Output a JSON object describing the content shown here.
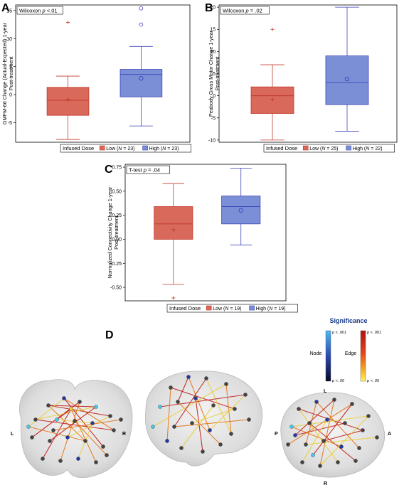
{
  "colors": {
    "low": "#d9695a",
    "low_edge": "#c0392b",
    "high": "#7b8fd6",
    "high_edge": "#3b44b8"
  },
  "chart_data": [
    {
      "panel": "A",
      "type": "box",
      "ylabel": "GMFM-66 Change (Actual-Expected) 1-year Post-treatment",
      "annotation": "Wilcoxon p <.01",
      "ylim": [
        -8.5,
        16
      ],
      "yticks": [
        -5,
        0,
        5,
        10,
        15
      ],
      "legend": {
        "title": "Infused Dose",
        "entries": [
          "Low (N = 23)",
          "High (N = 23)"
        ]
      },
      "series": [
        {
          "name": "Low (N = 23)",
          "q1": -3.7,
          "median": -1.0,
          "q3": 1.3,
          "whisker_low": -8.0,
          "whisker_high": 3.3,
          "mean": -0.9,
          "outliers": [
            12.9
          ]
        },
        {
          "name": "High (N = 23)",
          "q1": -0.4,
          "median": 3.6,
          "q3": 4.5,
          "whisker_low": -5.6,
          "whisker_high": 8.6,
          "mean": 2.9,
          "outliers": [
            12.5,
            15.4
          ]
        }
      ]
    },
    {
      "panel": "B",
      "type": "box",
      "ylabel": "Peabody Gross Motor Change 1-year Post-treatment",
      "annotation": "Wilcoxon p = .02",
      "ylim": [
        -10.5,
        20.5
      ],
      "yticks": [
        -10,
        -5,
        0,
        5,
        10,
        15,
        20
      ],
      "legend": {
        "title": "Infused Dose",
        "entries": [
          "Low (N = 25)",
          "High (N = 22)"
        ]
      },
      "series": [
        {
          "name": "Low (N = 25)",
          "q1": -4.0,
          "median": 0.0,
          "q3": 2.0,
          "whisker_low": -10.0,
          "whisker_high": 7.0,
          "mean": -0.8,
          "outliers": [
            15.0
          ]
        },
        {
          "name": "High (N = 22)",
          "q1": -2.0,
          "median": 3.0,
          "q3": 9.0,
          "whisker_low": -8.0,
          "whisker_high": 20.0,
          "mean": 3.8,
          "outliers": []
        }
      ]
    },
    {
      "panel": "C",
      "type": "box",
      "ylabel": "Normalized Connectivity Change 1-year Post-treatment",
      "annotation": "T-test p = .04",
      "ylim": [
        -0.64,
        0.78
      ],
      "yticks": [
        -0.5,
        -0.25,
        0.0,
        0.25,
        0.5,
        0.75
      ],
      "ytick_labels": [
        "-0.50",
        "-0.25",
        "0.00",
        "0.25",
        "0.50",
        "0.75"
      ],
      "legend": {
        "title": "Infused Dose",
        "entries": [
          "Low (N = 19)",
          "High (N = 19)"
        ]
      },
      "series": [
        {
          "name": "Low (N = 19)",
          "q1": 0.0,
          "median": 0.16,
          "q3": 0.34,
          "whisker_low": -0.47,
          "whisker_high": 0.58,
          "mean": 0.1,
          "outliers": [
            -0.61
          ]
        },
        {
          "name": "High (N = 19)",
          "q1": 0.16,
          "median": 0.34,
          "q3": 0.45,
          "whisker_low": -0.06,
          "whisker_high": 0.74,
          "mean": 0.3,
          "outliers": []
        }
      ]
    }
  ],
  "panel_d": {
    "label": "D",
    "significance_title": "Significance",
    "node_label": "Node",
    "edge_label": "Edge",
    "p_top": "p < .001",
    "p_bottom": "p < .05",
    "orient": {
      "L": "L",
      "R": "R",
      "P": "P",
      "A": "A"
    }
  }
}
